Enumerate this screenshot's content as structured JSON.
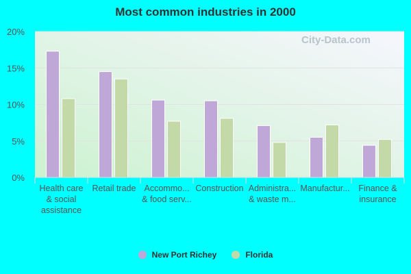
{
  "chart_data": {
    "type": "bar",
    "title": "Most common industries in 2000",
    "categories": [
      [
        "Health care",
        "& social",
        "assistance"
      ],
      [
        "Retail trade"
      ],
      [
        "Accommo...",
        "& food serv..."
      ],
      [
        "Construction"
      ],
      [
        "Administra...",
        "& waste m..."
      ],
      [
        "Manufactur..."
      ],
      [
        "Finance &",
        "insurance"
      ]
    ],
    "series": [
      {
        "name": "New Port Richey",
        "color": "#bfa8d8",
        "values": [
          17.3,
          14.5,
          10.6,
          10.5,
          7.1,
          5.5,
          4.4
        ]
      },
      {
        "name": "Florida",
        "color": "#c4d9a8",
        "values": [
          10.8,
          13.5,
          7.7,
          8.1,
          4.8,
          7.2,
          5.2
        ]
      }
    ],
    "ylim": [
      0,
      20
    ],
    "yticks": [
      0,
      5,
      10,
      15,
      20
    ],
    "ytick_labels": [
      "0%",
      "5%",
      "10%",
      "15%",
      "20%"
    ],
    "grid": true,
    "legend": "bottom",
    "watermark": "City-Data.com"
  }
}
